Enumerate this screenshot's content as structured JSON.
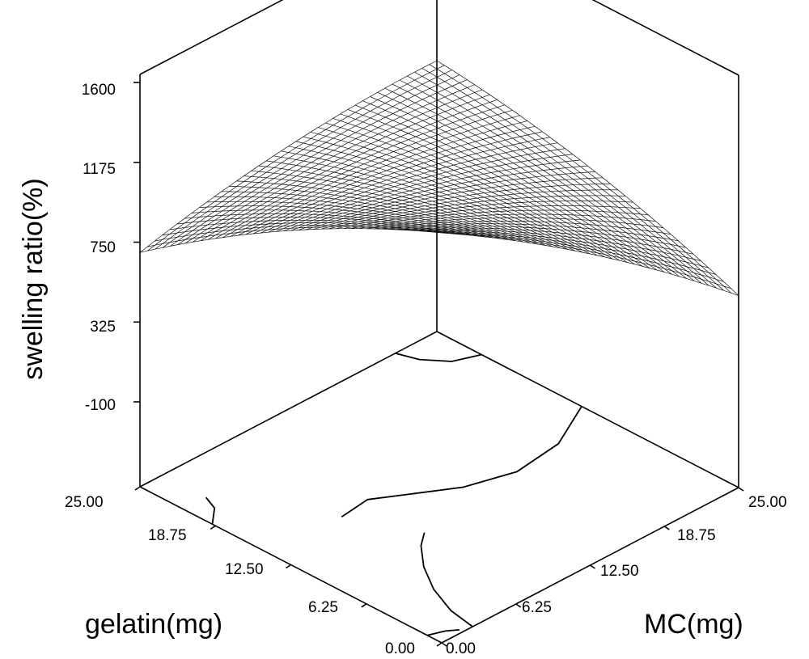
{
  "chart_data": {
    "type": "surface",
    "title": "",
    "zlabel": "swelling ratio(%)",
    "xlabel": "gelatin(mg)",
    "ylabel": "MC(mg)",
    "z_ticks": [
      "1600",
      "1175",
      "750",
      "325",
      "-100"
    ],
    "x_ticks": [
      "25.00",
      "18.75",
      "12.50",
      "6.25",
      "0.00"
    ],
    "y_ticks": [
      "25.00",
      "18.75",
      "12.50",
      "6.25",
      "0.00"
    ],
    "zlim": [
      -100,
      1600
    ],
    "xlim": [
      0,
      25
    ],
    "ylim": [
      0,
      25
    ],
    "corner_values": [
      {
        "gelatin": 0,
        "MC": 0,
        "swelling": 1630
      },
      {
        "gelatin": 25,
        "MC": 0,
        "swelling": 695
      },
      {
        "gelatin": 0,
        "MC": 25,
        "swelling": 470
      },
      {
        "gelatin": 25,
        "MC": 25,
        "swelling": 890
      }
    ],
    "grid": true,
    "mesh_color": "#111111"
  }
}
